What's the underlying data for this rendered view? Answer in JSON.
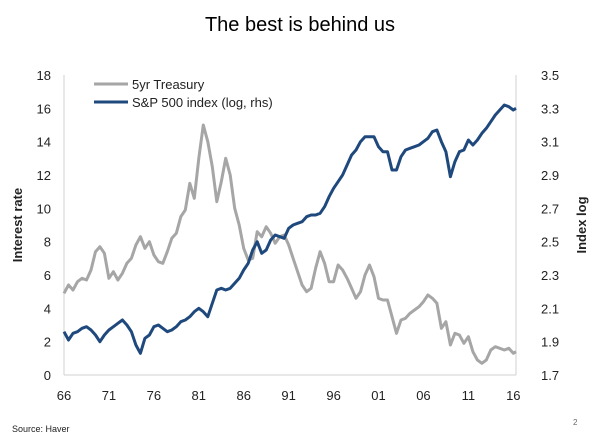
{
  "slide": {
    "source": "Source: Haver",
    "page_number": "2"
  },
  "chart_data": {
    "type": "line",
    "title": "The best is behind us",
    "xlabel": "",
    "ylabel": "Interest rate",
    "y2label": "Index log",
    "x_ticks": [
      "66",
      "71",
      "76",
      "81",
      "86",
      "91",
      "96",
      "01",
      "06",
      "11",
      "16"
    ],
    "x_range": [
      1966,
      2016.3
    ],
    "ylim": [
      0,
      18
    ],
    "y_ticks": [
      0,
      2,
      4,
      6,
      8,
      10,
      12,
      14,
      16,
      18
    ],
    "y2lim": [
      1.7,
      3.5
    ],
    "y2_ticks": [
      "1.7",
      "1.9",
      "2.1",
      "2.3",
      "2.5",
      "2.7",
      "2.9",
      "3.1",
      "3.3",
      "3.5"
    ],
    "grid": false,
    "legend_position": "top-left",
    "series": [
      {
        "name": "5yr Treasury",
        "axis": "left",
        "color": "#a6a6a6",
        "x": [
          1966.0,
          1966.5,
          1967.0,
          1967.5,
          1968.0,
          1968.5,
          1969.0,
          1969.5,
          1970.0,
          1970.5,
          1971.0,
          1971.5,
          1972.0,
          1972.5,
          1973.0,
          1973.5,
          1974.0,
          1974.5,
          1975.0,
          1975.5,
          1976.0,
          1976.5,
          1977.0,
          1977.5,
          1978.0,
          1978.5,
          1979.0,
          1979.5,
          1980.0,
          1980.5,
          1981.0,
          1981.5,
          1982.0,
          1982.5,
          1983.0,
          1983.5,
          1984.0,
          1984.5,
          1985.0,
          1985.5,
          1986.0,
          1986.5,
          1987.0,
          1987.5,
          1988.0,
          1988.5,
          1989.0,
          1989.5,
          1990.0,
          1990.5,
          1991.0,
          1991.5,
          1992.0,
          1992.5,
          1993.0,
          1993.5,
          1994.0,
          1994.5,
          1995.0,
          1995.5,
          1996.0,
          1996.5,
          1997.0,
          1997.5,
          1998.0,
          1998.5,
          1999.0,
          1999.5,
          2000.0,
          2000.5,
          2001.0,
          2001.5,
          2002.0,
          2002.5,
          2003.0,
          2003.5,
          2004.0,
          2004.5,
          2005.0,
          2005.5,
          2006.0,
          2006.5,
          2007.0,
          2007.5,
          2008.0,
          2008.5,
          2009.0,
          2009.5,
          2010.0,
          2010.5,
          2011.0,
          2011.5,
          2012.0,
          2012.5,
          2013.0,
          2013.5,
          2014.0,
          2014.5,
          2015.0,
          2015.5,
          2016.0,
          2016.3
        ],
        "values": [
          4.9,
          5.4,
          5.1,
          5.6,
          5.8,
          5.7,
          6.3,
          7.4,
          7.7,
          7.3,
          5.8,
          6.2,
          5.7,
          6.1,
          6.7,
          7.0,
          7.8,
          8.3,
          7.6,
          8.0,
          7.2,
          6.8,
          6.7,
          7.4,
          8.2,
          8.5,
          9.5,
          9.9,
          11.5,
          10.6,
          13.0,
          15.0,
          14.0,
          12.5,
          10.4,
          11.6,
          13.0,
          12.0,
          10.0,
          9.0,
          7.6,
          6.9,
          7.0,
          8.6,
          8.3,
          8.9,
          8.5,
          7.9,
          8.3,
          8.4,
          7.8,
          7.0,
          6.2,
          5.4,
          5.0,
          5.2,
          6.4,
          7.4,
          6.7,
          5.6,
          5.6,
          6.6,
          6.3,
          5.8,
          5.2,
          4.6,
          5.0,
          6.0,
          6.6,
          5.9,
          4.6,
          4.5,
          4.5,
          3.5,
          2.5,
          3.3,
          3.4,
          3.7,
          3.9,
          4.1,
          4.4,
          4.8,
          4.6,
          4.3,
          2.8,
          3.2,
          1.8,
          2.5,
          2.4,
          1.9,
          2.3,
          1.4,
          0.9,
          0.7,
          0.9,
          1.5,
          1.7,
          1.6,
          1.5,
          1.6,
          1.3,
          1.4
        ]
      },
      {
        "name": "S&P 500 index (log, rhs)",
        "axis": "right",
        "color": "#1f497d",
        "x": [
          1966.0,
          1966.5,
          1967.0,
          1967.5,
          1968.0,
          1968.5,
          1969.0,
          1969.5,
          1970.0,
          1970.5,
          1971.0,
          1971.5,
          1972.0,
          1972.5,
          1973.0,
          1973.5,
          1974.0,
          1974.5,
          1975.0,
          1975.5,
          1976.0,
          1976.5,
          1977.0,
          1977.5,
          1978.0,
          1978.5,
          1979.0,
          1979.5,
          1980.0,
          1980.5,
          1981.0,
          1981.5,
          1982.0,
          1982.5,
          1983.0,
          1983.5,
          1984.0,
          1984.5,
          1985.0,
          1985.5,
          1986.0,
          1986.5,
          1987.0,
          1987.5,
          1988.0,
          1988.5,
          1989.0,
          1989.5,
          1990.0,
          1990.5,
          1991.0,
          1991.5,
          1992.0,
          1992.5,
          1993.0,
          1993.5,
          1994.0,
          1994.5,
          1995.0,
          1995.5,
          1996.0,
          1996.5,
          1997.0,
          1997.5,
          1998.0,
          1998.5,
          1999.0,
          1999.5,
          2000.0,
          2000.5,
          2001.0,
          2001.5,
          2002.0,
          2002.5,
          2003.0,
          2003.5,
          2004.0,
          2004.5,
          2005.0,
          2005.5,
          2006.0,
          2006.5,
          2007.0,
          2007.5,
          2008.0,
          2008.5,
          2009.0,
          2009.5,
          2010.0,
          2010.5,
          2011.0,
          2011.5,
          2012.0,
          2012.5,
          2013.0,
          2013.5,
          2014.0,
          2014.5,
          2015.0,
          2015.5,
          2016.0,
          2016.3
        ],
        "values": [
          1.96,
          1.91,
          1.95,
          1.96,
          1.98,
          1.99,
          1.97,
          1.94,
          1.9,
          1.94,
          1.97,
          1.99,
          2.01,
          2.03,
          2.0,
          1.96,
          1.88,
          1.83,
          1.92,
          1.94,
          1.99,
          2.0,
          1.98,
          1.96,
          1.97,
          1.99,
          2.02,
          2.03,
          2.05,
          2.08,
          2.1,
          2.08,
          2.05,
          2.13,
          2.21,
          2.22,
          2.21,
          2.22,
          2.25,
          2.28,
          2.33,
          2.37,
          2.45,
          2.5,
          2.43,
          2.45,
          2.51,
          2.54,
          2.53,
          2.52,
          2.58,
          2.6,
          2.61,
          2.62,
          2.65,
          2.66,
          2.66,
          2.67,
          2.71,
          2.77,
          2.82,
          2.86,
          2.9,
          2.96,
          3.02,
          3.05,
          3.1,
          3.13,
          3.13,
          3.13,
          3.07,
          3.04,
          3.04,
          2.93,
          2.93,
          3.01,
          3.05,
          3.06,
          3.07,
          3.08,
          3.1,
          3.12,
          3.16,
          3.17,
          3.1,
          3.04,
          2.89,
          2.98,
          3.04,
          3.05,
          3.11,
          3.08,
          3.11,
          3.15,
          3.18,
          3.22,
          3.26,
          3.29,
          3.32,
          3.31,
          3.29,
          3.3
        ]
      }
    ]
  }
}
